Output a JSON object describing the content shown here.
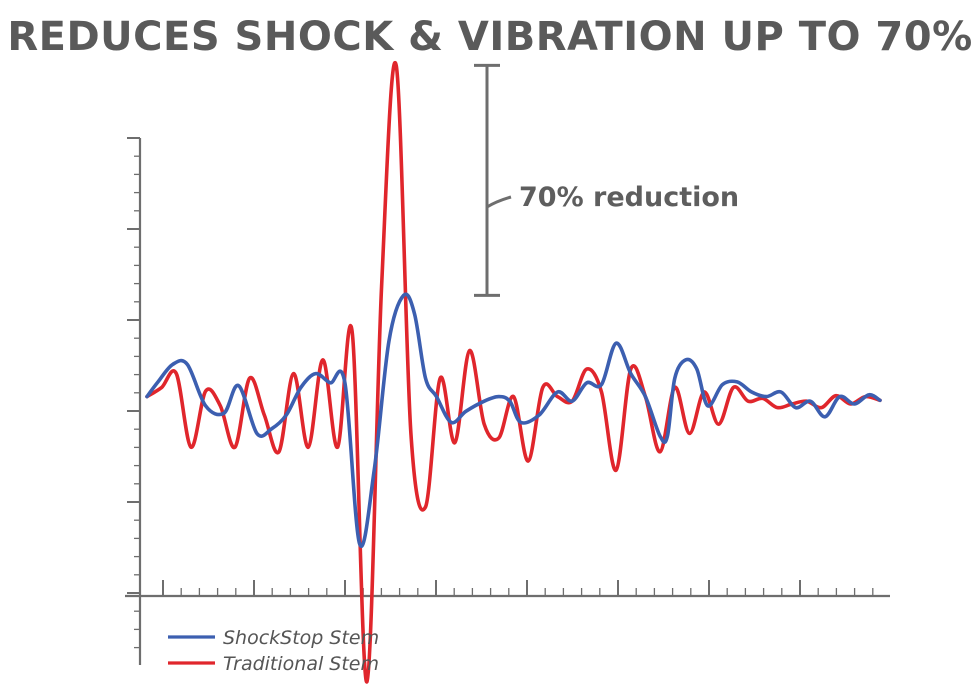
{
  "chart_data": {
    "type": "line",
    "title": "REDUCES SHOCK & VIBRATION UP TO 70%",
    "xlabel": "",
    "ylabel": "",
    "xlim": [
      0,
      100
    ],
    "ylim": [
      -30,
      60
    ],
    "grid": false,
    "legend_position": "bottom-left",
    "colors": {
      "axis": "#6e6e6e",
      "annotation": "#6e6e6e",
      "title": "#5a5a5a"
    },
    "series": [
      {
        "name": "ShockStop Stem",
        "color": "#3c5fb0",
        "x": [
          0,
          1.5,
          3.5,
          5.5,
          8,
          10.5,
          12.5,
          15,
          17,
          19,
          21,
          23,
          25,
          27,
          29,
          31,
          33,
          35,
          36.5,
          38,
          39.5,
          41.5,
          43.5,
          46,
          48,
          49.5,
          51,
          53.5,
          56,
          58,
          60,
          62,
          64,
          66,
          68,
          70,
          71,
          72,
          73.5,
          75,
          76.5,
          78.5,
          80.5,
          82.5,
          84.5,
          86.5,
          88.5,
          90.5,
          92.5,
          94.5,
          96.5,
          98.5,
          100
        ],
        "y": [
          2,
          3.6,
          5.5,
          5.5,
          1,
          0.2,
          3.2,
          -2,
          -1.5,
          0,
          3,
          4.5,
          3.5,
          3.5,
          -14,
          -6,
          8,
          13,
          11,
          4,
          2,
          -0.8,
          0.4,
          1.5,
          2,
          1.5,
          -0.8,
          0,
          2.5,
          1.5,
          3.5,
          3.3,
          7.8,
          4.5,
          2,
          -2.3,
          -2.3,
          4,
          6,
          5,
          1,
          3.3,
          3.6,
          2.5,
          2,
          2.5,
          0.8,
          1.5,
          -0.2,
          2,
          1.2,
          2.2,
          1.6
        ]
      },
      {
        "name": "Traditional Stem",
        "color": "#e0262c",
        "x": [
          0,
          2,
          4,
          6,
          8,
          10,
          12,
          14,
          16,
          18,
          20,
          22,
          24,
          26,
          28,
          30,
          32,
          34,
          36,
          38,
          40,
          42,
          44,
          46,
          48,
          50,
          52,
          54,
          56,
          58,
          60,
          62,
          64,
          66,
          68,
          70,
          72,
          74,
          76,
          78,
          80,
          82,
          84,
          86,
          88,
          90,
          92,
          94,
          96,
          98,
          100
        ],
        "y": [
          2,
          3,
          4.5,
          -3.5,
          2.6,
          1,
          -3.5,
          4,
          0,
          -4,
          4.5,
          -3.5,
          6,
          -3.5,
          9,
          -29,
          14,
          38,
          -2,
          -10,
          4,
          -3,
          7,
          -1,
          -2.5,
          2,
          -5,
          3,
          2,
          1.5,
          5,
          2.5,
          -6,
          5,
          2,
          -4,
          3,
          -2,
          2.5,
          -1,
          3,
          1.5,
          1.8,
          0.8,
          1.2,
          1.5,
          0.8,
          2.1,
          1.2,
          2,
          1.6
        ]
      }
    ],
    "annotations": [
      {
        "label": "70% reduction",
        "y_top": 38,
        "y_bottom": 13
      }
    ]
  }
}
